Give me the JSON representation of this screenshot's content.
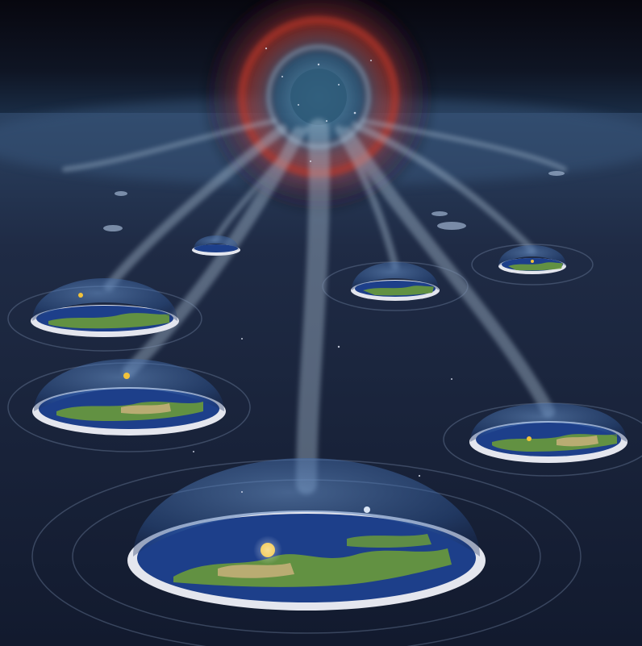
{
  "scene": {
    "subject": "cosmic-vortex-feeding-domed-flat-worlds",
    "colors": {
      "sky_top": "#07070f",
      "sky_horizon": "#1d3450",
      "water_dark": "#121a2e",
      "water_mid": "#1f2b45",
      "vortex_red": "#c0392b",
      "vortex_core": "#3a6e8f",
      "dome_glass": "#3e6fb0",
      "rim_white": "#e4e6ee",
      "ocean_blue": "#1d3f8a",
      "land_green": "#6a9a3a",
      "land_tan": "#c9b07a",
      "sun_yellow": "#f2c23a",
      "stream_light": "#b8cde0"
    },
    "worlds": [
      {
        "name": "foreground-world",
        "size": "large"
      },
      {
        "name": "left-mid-world",
        "size": "medium"
      },
      {
        "name": "right-mid-world",
        "size": "medium"
      },
      {
        "name": "left-far-world",
        "size": "medium"
      },
      {
        "name": "center-far-world",
        "size": "small"
      },
      {
        "name": "right-far-world",
        "size": "small"
      },
      {
        "name": "distant-world",
        "size": "tiny"
      }
    ]
  }
}
